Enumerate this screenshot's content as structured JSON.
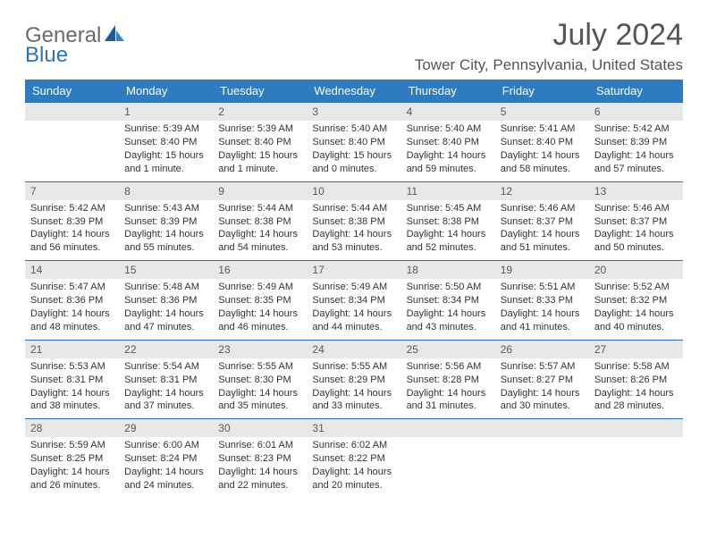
{
  "logo": {
    "part1": "General",
    "part2": "Blue"
  },
  "title": "July 2024",
  "subtitle": "Tower City, Pennsylvania, United States",
  "colors": {
    "header_bg": "#2f7bbf",
    "header_text": "#ffffff",
    "daynum_bg": "#e8e8e8",
    "daynum_border": "#2f6fa8",
    "body_text": "#333333",
    "title_text": "#555555",
    "logo_gray": "#6a6a6a",
    "logo_blue": "#2f72b6"
  },
  "typography": {
    "title_fontsize": 34,
    "subtitle_fontsize": 17,
    "header_fontsize": 13,
    "daynum_fontsize": 12,
    "cell_fontsize": 11
  },
  "weekdays": [
    "Sunday",
    "Monday",
    "Tuesday",
    "Wednesday",
    "Thursday",
    "Friday",
    "Saturday"
  ],
  "weeks": [
    [
      {
        "day": "",
        "lines": []
      },
      {
        "day": "1",
        "lines": [
          "Sunrise: 5:39 AM",
          "Sunset: 8:40 PM",
          "Daylight: 15 hours",
          "and 1 minute."
        ]
      },
      {
        "day": "2",
        "lines": [
          "Sunrise: 5:39 AM",
          "Sunset: 8:40 PM",
          "Daylight: 15 hours",
          "and 1 minute."
        ]
      },
      {
        "day": "3",
        "lines": [
          "Sunrise: 5:40 AM",
          "Sunset: 8:40 PM",
          "Daylight: 15 hours",
          "and 0 minutes."
        ]
      },
      {
        "day": "4",
        "lines": [
          "Sunrise: 5:40 AM",
          "Sunset: 8:40 PM",
          "Daylight: 14 hours",
          "and 59 minutes."
        ]
      },
      {
        "day": "5",
        "lines": [
          "Sunrise: 5:41 AM",
          "Sunset: 8:40 PM",
          "Daylight: 14 hours",
          "and 58 minutes."
        ]
      },
      {
        "day": "6",
        "lines": [
          "Sunrise: 5:42 AM",
          "Sunset: 8:39 PM",
          "Daylight: 14 hours",
          "and 57 minutes."
        ]
      }
    ],
    [
      {
        "day": "7",
        "lines": [
          "Sunrise: 5:42 AM",
          "Sunset: 8:39 PM",
          "Daylight: 14 hours",
          "and 56 minutes."
        ]
      },
      {
        "day": "8",
        "lines": [
          "Sunrise: 5:43 AM",
          "Sunset: 8:39 PM",
          "Daylight: 14 hours",
          "and 55 minutes."
        ]
      },
      {
        "day": "9",
        "lines": [
          "Sunrise: 5:44 AM",
          "Sunset: 8:38 PM",
          "Daylight: 14 hours",
          "and 54 minutes."
        ]
      },
      {
        "day": "10",
        "lines": [
          "Sunrise: 5:44 AM",
          "Sunset: 8:38 PM",
          "Daylight: 14 hours",
          "and 53 minutes."
        ]
      },
      {
        "day": "11",
        "lines": [
          "Sunrise: 5:45 AM",
          "Sunset: 8:38 PM",
          "Daylight: 14 hours",
          "and 52 minutes."
        ]
      },
      {
        "day": "12",
        "lines": [
          "Sunrise: 5:46 AM",
          "Sunset: 8:37 PM",
          "Daylight: 14 hours",
          "and 51 minutes."
        ]
      },
      {
        "day": "13",
        "lines": [
          "Sunrise: 5:46 AM",
          "Sunset: 8:37 PM",
          "Daylight: 14 hours",
          "and 50 minutes."
        ]
      }
    ],
    [
      {
        "day": "14",
        "lines": [
          "Sunrise: 5:47 AM",
          "Sunset: 8:36 PM",
          "Daylight: 14 hours",
          "and 48 minutes."
        ]
      },
      {
        "day": "15",
        "lines": [
          "Sunrise: 5:48 AM",
          "Sunset: 8:36 PM",
          "Daylight: 14 hours",
          "and 47 minutes."
        ]
      },
      {
        "day": "16",
        "lines": [
          "Sunrise: 5:49 AM",
          "Sunset: 8:35 PM",
          "Daylight: 14 hours",
          "and 46 minutes."
        ]
      },
      {
        "day": "17",
        "lines": [
          "Sunrise: 5:49 AM",
          "Sunset: 8:34 PM",
          "Daylight: 14 hours",
          "and 44 minutes."
        ]
      },
      {
        "day": "18",
        "lines": [
          "Sunrise: 5:50 AM",
          "Sunset: 8:34 PM",
          "Daylight: 14 hours",
          "and 43 minutes."
        ]
      },
      {
        "day": "19",
        "lines": [
          "Sunrise: 5:51 AM",
          "Sunset: 8:33 PM",
          "Daylight: 14 hours",
          "and 41 minutes."
        ]
      },
      {
        "day": "20",
        "lines": [
          "Sunrise: 5:52 AM",
          "Sunset: 8:32 PM",
          "Daylight: 14 hours",
          "and 40 minutes."
        ]
      }
    ],
    [
      {
        "day": "21",
        "lines": [
          "Sunrise: 5:53 AM",
          "Sunset: 8:31 PM",
          "Daylight: 14 hours",
          "and 38 minutes."
        ]
      },
      {
        "day": "22",
        "lines": [
          "Sunrise: 5:54 AM",
          "Sunset: 8:31 PM",
          "Daylight: 14 hours",
          "and 37 minutes."
        ]
      },
      {
        "day": "23",
        "lines": [
          "Sunrise: 5:55 AM",
          "Sunset: 8:30 PM",
          "Daylight: 14 hours",
          "and 35 minutes."
        ]
      },
      {
        "day": "24",
        "lines": [
          "Sunrise: 5:55 AM",
          "Sunset: 8:29 PM",
          "Daylight: 14 hours",
          "and 33 minutes."
        ]
      },
      {
        "day": "25",
        "lines": [
          "Sunrise: 5:56 AM",
          "Sunset: 8:28 PM",
          "Daylight: 14 hours",
          "and 31 minutes."
        ]
      },
      {
        "day": "26",
        "lines": [
          "Sunrise: 5:57 AM",
          "Sunset: 8:27 PM",
          "Daylight: 14 hours",
          "and 30 minutes."
        ]
      },
      {
        "day": "27",
        "lines": [
          "Sunrise: 5:58 AM",
          "Sunset: 8:26 PM",
          "Daylight: 14 hours",
          "and 28 minutes."
        ]
      }
    ],
    [
      {
        "day": "28",
        "lines": [
          "Sunrise: 5:59 AM",
          "Sunset: 8:25 PM",
          "Daylight: 14 hours",
          "and 26 minutes."
        ]
      },
      {
        "day": "29",
        "lines": [
          "Sunrise: 6:00 AM",
          "Sunset: 8:24 PM",
          "Daylight: 14 hours",
          "and 24 minutes."
        ]
      },
      {
        "day": "30",
        "lines": [
          "Sunrise: 6:01 AM",
          "Sunset: 8:23 PM",
          "Daylight: 14 hours",
          "and 22 minutes."
        ]
      },
      {
        "day": "31",
        "lines": [
          "Sunrise: 6:02 AM",
          "Sunset: 8:22 PM",
          "Daylight: 14 hours",
          "and 20 minutes."
        ]
      },
      {
        "day": "",
        "lines": []
      },
      {
        "day": "",
        "lines": []
      },
      {
        "day": "",
        "lines": []
      }
    ]
  ]
}
